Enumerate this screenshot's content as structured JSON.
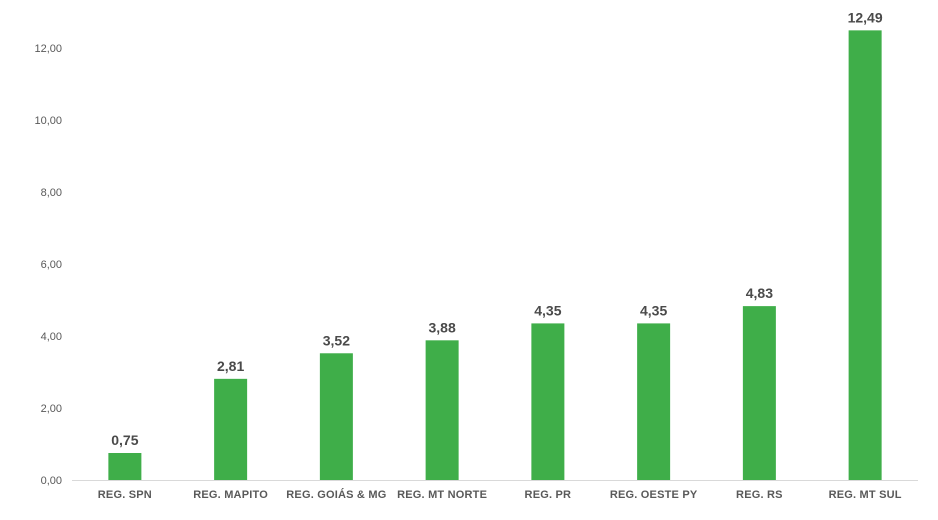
{
  "chart_data": {
    "type": "bar",
    "categories": [
      "REG. SPN",
      "REG. MAPITO",
      "REG. GOIÁS & MG",
      "REG. MT NORTE",
      "REG. PR",
      "REG. OESTE PY",
      "REG. RS",
      "REG. MT SUL"
    ],
    "values": [
      0.75,
      2.81,
      3.52,
      3.88,
      4.35,
      4.35,
      4.83,
      12.49
    ],
    "value_labels": [
      "0,75",
      "2,81",
      "3,52",
      "3,88",
      "4,35",
      "4,35",
      "4,83",
      "12,49"
    ],
    "y_ticks": [
      0,
      2,
      4,
      6,
      8,
      10,
      12
    ],
    "y_tick_labels": [
      "0,00",
      "2,00",
      "4,00",
      "6,00",
      "8,00",
      "10,00",
      "12,00"
    ],
    "ylim": [
      0,
      13
    ],
    "grid": false,
    "legend": "none",
    "bar_color": "#3FAE49",
    "axis_color": "#D9D9D9"
  }
}
